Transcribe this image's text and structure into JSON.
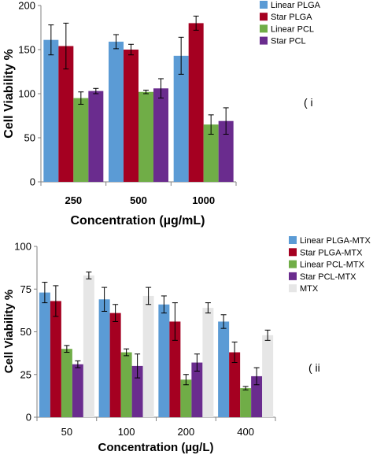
{
  "chart_data": [
    {
      "type": "bar",
      "panel_label": "( i",
      "ylabel": "Cell Viability %",
      "xlabel": "Concentration (µg/mL)",
      "ylim": [
        0,
        200
      ],
      "yticks": [
        "0",
        "50",
        "100",
        "150",
        "200"
      ],
      "categories": [
        "250",
        "500",
        "1000"
      ],
      "legend_position": "top-right",
      "series": [
        {
          "name": "Linear PLGA",
          "color": "#5B9BD5",
          "values": [
            161,
            159,
            143
          ],
          "errors": [
            17,
            8,
            21
          ]
        },
        {
          "name": "Star PLGA",
          "color": "#A50021",
          "values": [
            154,
            150,
            180
          ],
          "errors": [
            26,
            6,
            8
          ]
        },
        {
          "name": "Linear PCL",
          "color": "#70AD47",
          "values": [
            95,
            102,
            65
          ],
          "errors": [
            7,
            2,
            11
          ]
        },
        {
          "name": "Star PCL",
          "color": "#6A2C8E",
          "values": [
            103,
            106,
            69
          ],
          "errors": [
            3,
            11,
            15
          ]
        }
      ]
    },
    {
      "type": "bar",
      "panel_label": "( ii",
      "ylabel": "Cell Viability %",
      "xlabel": "Concentration (µg/L)",
      "ylim": [
        0,
        100
      ],
      "yticks": [
        "0",
        "25",
        "50",
        "75",
        "100"
      ],
      "categories": [
        "50",
        "100",
        "200",
        "400"
      ],
      "legend_position": "top-right",
      "series": [
        {
          "name": "Linear PLGA-MTX",
          "color": "#5B9BD5",
          "values": [
            73,
            69,
            66,
            56
          ],
          "errors": [
            6,
            7,
            5,
            4
          ]
        },
        {
          "name": "Star PLGA-MTX",
          "color": "#A50021",
          "values": [
            68,
            61,
            56,
            38
          ],
          "errors": [
            9,
            5,
            11,
            6
          ]
        },
        {
          "name": "Linear PCL-MTX",
          "color": "#70AD47",
          "values": [
            40,
            38,
            22,
            17
          ],
          "errors": [
            2,
            2,
            3,
            1
          ]
        },
        {
          "name": "Star PCL-MTX",
          "color": "#6A2C8E",
          "values": [
            31,
            30,
            32,
            24
          ],
          "errors": [
            2,
            7,
            5,
            5
          ]
        },
        {
          "name": "MTX",
          "color": "#E6E6E6",
          "values": [
            83,
            71,
            64,
            48
          ],
          "errors": [
            2,
            5,
            3,
            3
          ]
        }
      ]
    }
  ]
}
